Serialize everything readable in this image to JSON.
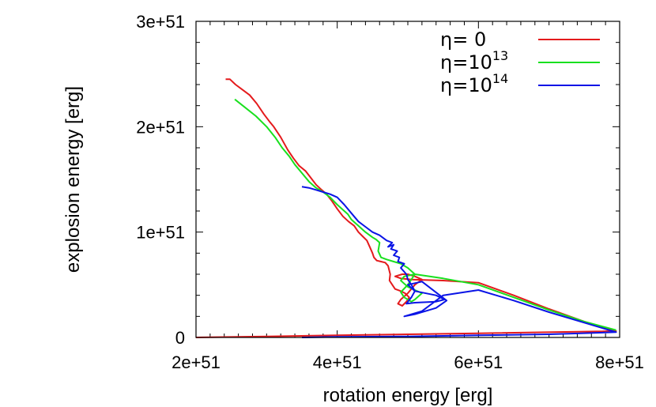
{
  "chart_data": {
    "type": "line",
    "title": "",
    "xlabel": "rotation energy [erg]",
    "ylabel": "explosion energy [erg]",
    "xlim": [
      2e+51,
      8e+51
    ],
    "ylim": [
      0,
      3e+51
    ],
    "x_ticks": [
      2e+51,
      4e+51,
      6e+51,
      8e+51
    ],
    "x_tick_labels": [
      "2e+51",
      "4e+51",
      "6e+51",
      "8e+51"
    ],
    "y_ticks": [
      0,
      1e+51,
      2e+51,
      3e+51
    ],
    "y_tick_labels": [
      "0",
      "1e+51",
      "2e+51",
      "3e+51"
    ],
    "grid": false,
    "legend_position": "top-right",
    "series": [
      {
        "name": "η= 0",
        "legend": {
          "base": "η= 0",
          "sup": ""
        },
        "color": "#e41a1c",
        "x": [
          2.42e+51,
          2.48e+51,
          2.56e+51,
          2.66e+51,
          2.76e+51,
          2.86e+51,
          2.96e+51,
          3.04e+51,
          3.1e+51,
          3.2e+51,
          3.3e+51,
          3.38e+51,
          3.46e+51,
          3.55e+51,
          3.62e+51,
          3.7e+51,
          3.78e+51,
          3.85e+51,
          3.92e+51,
          4e+51,
          4.08e+51,
          4.16e+51,
          4.24e+51,
          4.3e+51,
          4.36e+51,
          4.42e+51,
          4.46e+51,
          4.5e+51,
          4.52e+51,
          4.56e+51,
          4.62e+51,
          4.68e+51,
          4.72e+51,
          4.75e+51,
          4.74e+51,
          4.78e+51,
          4.82e+51,
          4.9e+51,
          4.96e+51,
          5.02e+51,
          4.98e+51,
          4.92e+51,
          4.86e+51,
          4.9e+51,
          5e+51,
          5.1e+51,
          5.2e+51,
          5.1e+51,
          5e+51,
          4.92e+51,
          4.82e+51,
          4.9e+51,
          5.05e+51,
          5.5e+51,
          6e+51,
          6.5e+51,
          7e+51,
          7.5e+51,
          7.95e+51,
          6e+51,
          4e+51,
          3e+51,
          2e+51
        ],
        "y": [
          2.45e+51,
          2.45e+51,
          2.4e+51,
          2.35e+51,
          2.3e+51,
          2.22e+51,
          2.12e+51,
          2.05e+51,
          2e+51,
          1.9e+51,
          1.78e+51,
          1.7e+51,
          1.63e+51,
          1.58e+51,
          1.52e+51,
          1.45e+51,
          1.4e+51,
          1.36e+51,
          1.3e+51,
          1.22e+51,
          1.15e+51,
          1.1e+51,
          1.06e+51,
          1e+51,
          9.6e+50,
          9.2e+50,
          8.6e+50,
          8e+50,
          7.6e+50,
          7.3e+50,
          7.2e+50,
          7.1e+50,
          6.8e+50,
          6e+50,
          5.4e+50,
          5e+50,
          4.6e+50,
          4.4e+50,
          4.2e+50,
          3.8e+50,
          3.4e+50,
          3e+50,
          3.2e+50,
          3.6e+50,
          4.2e+50,
          5e+50,
          5.5e+50,
          5.8e+50,
          6e+50,
          6e+50,
          5.8e+50,
          5.6e+50,
          5.5e+50,
          5.4e+50,
          5.2e+50,
          4e+50,
          2.7e+50,
          1.5e+50,
          6e+49,
          4e+49,
          2e+49,
          1e+49,
          0.0
        ]
      },
      {
        "name": "η=10^13",
        "legend": {
          "base": "η=10",
          "sup": "13"
        },
        "color": "#19e01e",
        "x": [
          2.55e+51,
          2.7e+51,
          2.85e+51,
          3e+51,
          3.12e+51,
          3.22e+51,
          3.32e+51,
          3.4e+51,
          3.5e+51,
          3.6e+51,
          3.7e+51,
          3.8e+51,
          3.9e+51,
          4e+51,
          4.1e+51,
          4.15e+51,
          4.2e+51,
          4.3e+51,
          4.4e+51,
          4.5e+51,
          4.55e+51,
          4.6e+51,
          4.58e+51,
          4.62e+51,
          4.7e+51,
          4.8e+51,
          4.9e+51,
          5e+51,
          5.1e+51,
          5e+51,
          4.9e+51,
          4.95e+51,
          5.05e+51,
          5.1e+51,
          5.2e+51,
          5e+51,
          4.9e+51,
          4.95e+51,
          5.1e+51,
          5.5e+51,
          6e+51,
          6.5e+51,
          7e+51,
          7.5e+51,
          7.95e+51
        ],
        "y": [
          2.26e+51,
          2.18e+51,
          2.1e+51,
          2e+51,
          1.9e+51,
          1.8e+51,
          1.72e+51,
          1.64e+51,
          1.56e+51,
          1.48e+51,
          1.42e+51,
          1.38e+51,
          1.33e+51,
          1.26e+51,
          1.2e+51,
          1.17e+51,
          1.12e+51,
          1.06e+51,
          1e+51,
          9.5e+50,
          9.3e+50,
          9e+50,
          8.2e+50,
          7.6e+50,
          7.4e+50,
          7.2e+50,
          7e+50,
          6.6e+50,
          6e+50,
          5e+50,
          4.3e+50,
          3.8e+50,
          3.4e+50,
          3.6e+50,
          4.2e+50,
          4.8e+50,
          5.4e+50,
          5.8e+50,
          6e+50,
          5.6e+50,
          5e+50,
          3.8e+50,
          2.6e+50,
          1.5e+50,
          7e+49
        ]
      },
      {
        "name": "η=10^14",
        "legend": {
          "base": "η=10",
          "sup": "14"
        },
        "color": "#0a14e6",
        "x": [
          3.5e+51,
          3.6e+51,
          3.7e+51,
          3.8e+51,
          3.9e+51,
          4e+51,
          4.1e+51,
          4.2e+51,
          4.3e+51,
          4.4e+51,
          4.5e+51,
          4.6e+51,
          4.7e+51,
          4.78e+51,
          4.72e+51,
          4.8e+51,
          4.76e+51,
          4.85e+51,
          4.8e+51,
          4.88e+51,
          4.86e+51,
          4.95e+51,
          4.9e+51,
          4.98e+51,
          5e+51,
          5.05e+51,
          5.1e+51,
          5.05e+51,
          4.98e+51,
          5.1e+51,
          5.4e+51,
          5.52e+51,
          5.4e+51,
          5.1e+51,
          5e+51,
          5.2e+51,
          5.55e+51,
          5.4e+51,
          5.1e+51,
          4.95e+51,
          5.2e+51,
          5.5e+51,
          6e+51,
          6.5e+51,
          7e+51,
          7.5e+51,
          7.95e+51,
          7e+51,
          6e+51,
          5e+51,
          4e+51,
          3.5e+51
        ],
        "y": [
          1.43e+51,
          1.42e+51,
          1.4e+51,
          1.38e+51,
          1.36e+51,
          1.33e+51,
          1.26e+51,
          1.18e+51,
          1.1e+51,
          1.05e+51,
          1e+51,
          9.7e+50,
          9.2e+50,
          9e+50,
          8.6e+50,
          8.8e+50,
          8.4e+50,
          8.2e+50,
          7.8e+50,
          7.6e+50,
          7.2e+50,
          7e+50,
          6.6e+50,
          6e+50,
          5.5e+50,
          5e+50,
          4.4e+50,
          3.8e+50,
          3.2e+50,
          3.3e+50,
          3.4e+50,
          3.6e+50,
          4e+50,
          4.4e+50,
          5e+50,
          5.3e+50,
          3.5e+50,
          2.8e+50,
          2.2e+50,
          2e+50,
          2.5e+50,
          4e+50,
          4.5e+50,
          3.5e+50,
          2.4e+50,
          1.4e+50,
          5e+49,
          3e+49,
          2e+49,
          1e+49,
          5e+48,
          0.0
        ]
      }
    ]
  }
}
